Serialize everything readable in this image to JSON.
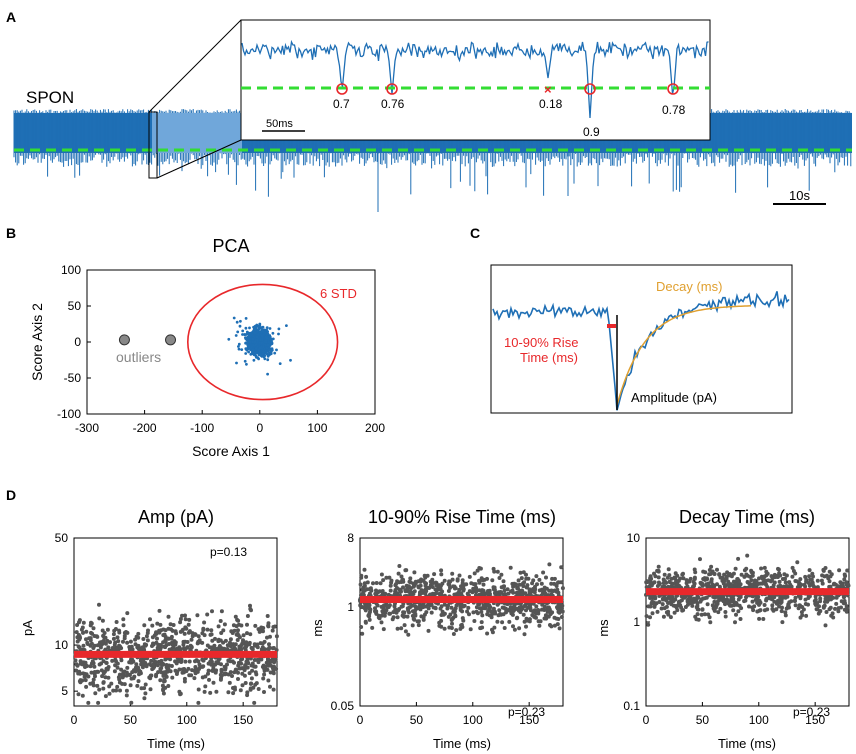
{
  "panels": {
    "A": {
      "label": "A",
      "trace_label": "SPON",
      "inset_scale": "50ms",
      "main_scale": "10s",
      "event_markers": [
        "0.7",
        "0.76",
        "0.18",
        "0.9",
        "0.78"
      ]
    },
    "B": {
      "label": "B"
    },
    "C": {
      "label": "C",
      "decay_label": "Decay (ms)",
      "rise_label_1": "10-90% Rise",
      "rise_label_2": "Time (ms)",
      "amplitude_label": "Amplitude (pA)"
    },
    "D": {
      "label": "D"
    }
  },
  "colors": {
    "trace": "#1f6fb5",
    "threshold": "#33dd33",
    "red": "#e8282b",
    "orange": "#e0a030",
    "gray": "#555555"
  },
  "chart_data": [
    {
      "id": "pca",
      "type": "scatter",
      "title": "PCA",
      "xlabel": "Score Axis 1",
      "ylabel": "Score Axis 2",
      "xlim": [
        -300,
        200
      ],
      "ylim": [
        -100,
        100
      ],
      "xticks": [
        -300,
        -200,
        -100,
        0,
        100,
        200
      ],
      "yticks": [
        100,
        50,
        0,
        -50,
        -100
      ],
      "cluster_center": [
        0,
        0
      ],
      "cluster_radius": [
        50,
        40
      ],
      "boundary_label": "6 STD",
      "boundary_center": [
        5,
        0
      ],
      "boundary_radius": [
        130,
        80
      ],
      "outliers": [
        [
          -235,
          3
        ],
        [
          -155,
          3
        ]
      ],
      "outlier_label": "outliers"
    },
    {
      "id": "amp",
      "type": "scatter",
      "title": "Amp (pA)",
      "xlabel": "Time (ms)",
      "ylabel": "pA",
      "xlim": [
        0,
        180
      ],
      "yscale": "log",
      "ylim": [
        4,
        50
      ],
      "xticks": [
        0,
        50,
        100,
        150
      ],
      "yticks": [
        50,
        10,
        5
      ],
      "fit_value": 8.7,
      "p_value": "p=0.13"
    },
    {
      "id": "rise",
      "type": "scatter",
      "title": "10-90% Rise Time (ms)",
      "xlabel": "Time (ms)",
      "ylabel": "ms",
      "xlim": [
        0,
        180
      ],
      "yscale": "log",
      "ylim": [
        0.05,
        8
      ],
      "xticks": [
        0,
        50,
        100,
        150
      ],
      "yticks": [
        8,
        1,
        0.05
      ],
      "fit_value": 1.25,
      "p_value": "p=0.23"
    },
    {
      "id": "decay",
      "type": "scatter",
      "title": "Decay Time  (ms)",
      "xlabel": "Time (ms)",
      "ylabel": "ms",
      "xlim": [
        0,
        180
      ],
      "yscale": "log",
      "ylim": [
        0.1,
        10
      ],
      "xticks": [
        0,
        50,
        100,
        150
      ],
      "yticks": [
        10,
        1,
        0.1
      ],
      "fit_value": 2.3,
      "p_value": "p=0.23"
    }
  ]
}
